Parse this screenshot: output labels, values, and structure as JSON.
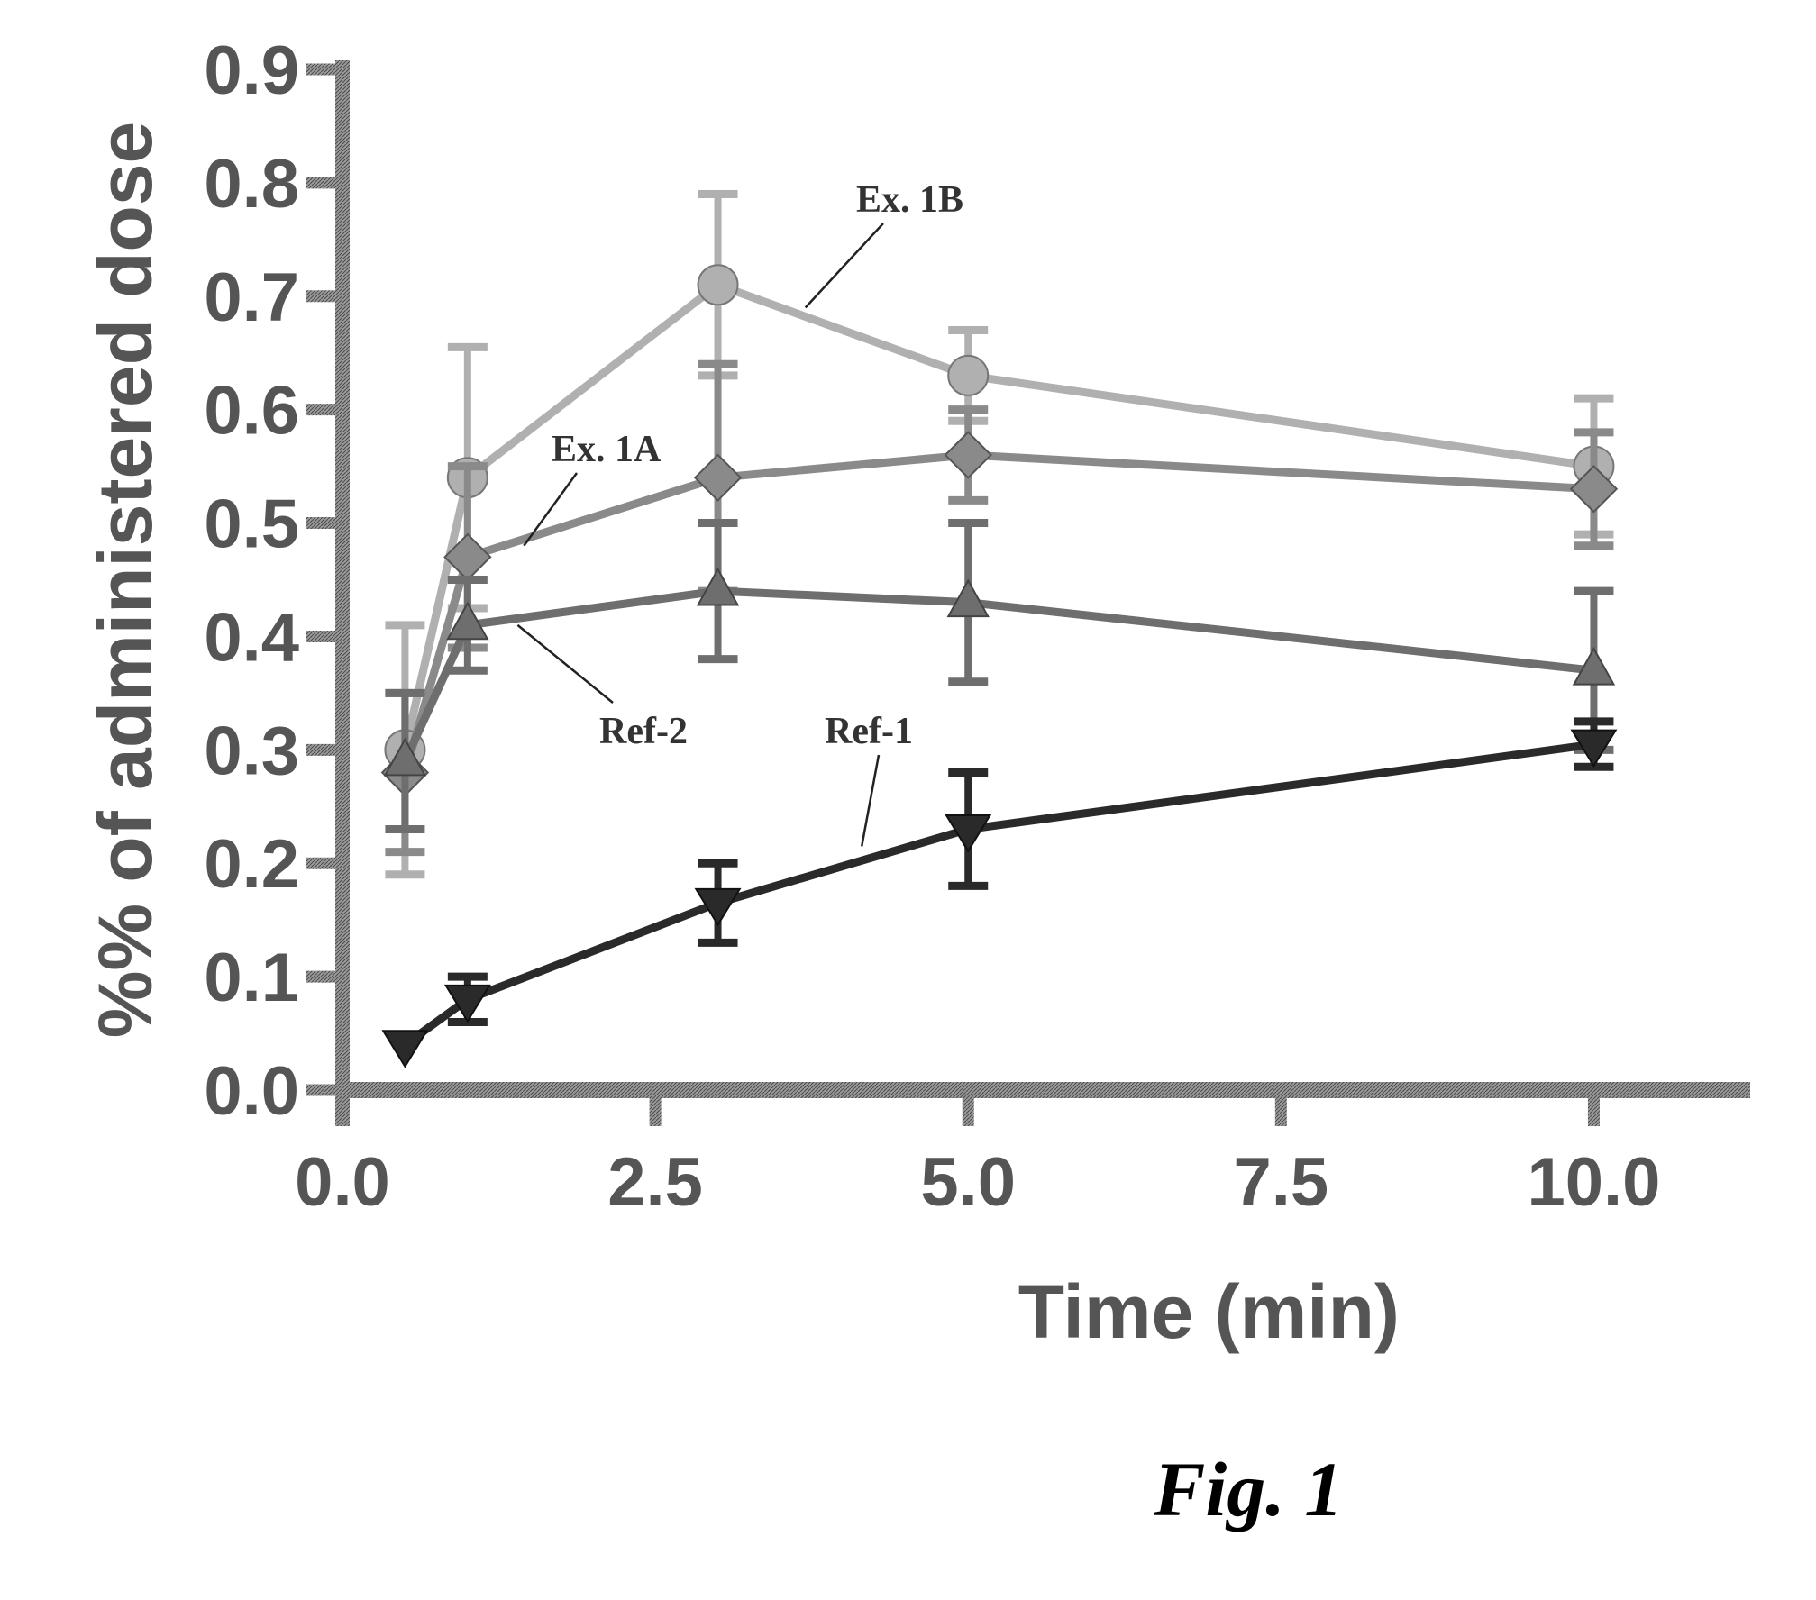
{
  "chart_data": {
    "type": "line",
    "xlabel": "Time (min)",
    "ylabel": "%% of administered dose",
    "xlim": [
      0,
      11.25
    ],
    "ylim": [
      0,
      0.9
    ],
    "x_ticks": [
      "0.0",
      "2.5",
      "5.0",
      "7.5",
      "10.0"
    ],
    "x_tick_values": [
      0,
      2.5,
      5,
      7.5,
      10
    ],
    "y_ticks": [
      "0.0",
      "0.1",
      "0.2",
      "0.3",
      "0.4",
      "0.5",
      "0.6",
      "0.7",
      "0.8",
      "0.9"
    ],
    "y_tick_values": [
      0,
      0.1,
      0.2,
      0.3,
      0.4,
      0.5,
      0.6,
      0.7,
      0.8,
      0.9
    ],
    "grid": false,
    "series": [
      {
        "name": "Ex. 1B",
        "marker": "circle",
        "color": "#b0b0b0",
        "x": [
          0.5,
          1,
          3,
          5,
          10
        ],
        "y": [
          0.3,
          0.54,
          0.71,
          0.63,
          0.55
        ],
        "yerr": [
          0.11,
          0.115,
          0.08,
          0.04,
          0.06
        ]
      },
      {
        "name": "Ex. 1A",
        "marker": "diamond",
        "color": "#8a8a8a",
        "x": [
          0.5,
          1,
          3,
          5,
          10
        ],
        "y": [
          0.28,
          0.47,
          0.54,
          0.56,
          0.53
        ],
        "yerr": [
          0.07,
          0.08,
          0.1,
          0.04,
          0.05
        ]
      },
      {
        "name": "Ref-2",
        "marker": "triangle-up",
        "color": "#6e6e6e",
        "x": [
          0.5,
          1,
          3,
          5,
          10
        ],
        "y": [
          0.29,
          0.41,
          0.44,
          0.43,
          0.37
        ],
        "yerr": [
          0.06,
          0.04,
          0.06,
          0.07,
          0.07
        ]
      },
      {
        "name": "Ref-1",
        "marker": "triangle-down",
        "color": "#2a2a2a",
        "x": [
          0.5,
          1,
          3,
          5,
          10
        ],
        "y": [
          0.04,
          0.08,
          0.165,
          0.23,
          0.305
        ],
        "yerr": [
          0.0,
          0.02,
          0.035,
          0.05,
          0.02
        ]
      }
    ],
    "annotations": [
      {
        "text": "Ex. 1B",
        "series": 0,
        "point_x": 3.7,
        "point_y": 0.69
      },
      {
        "text": "Ex. 1A",
        "series": 1,
        "point_x": 1.45,
        "point_y": 0.48
      },
      {
        "text": "Ref-2",
        "series": 2,
        "point_x": 1.4,
        "point_y": 0.41
      },
      {
        "text": "Ref-1",
        "series": 3,
        "point_x": 4.15,
        "point_y": 0.215
      }
    ]
  },
  "caption": "Fig. 1"
}
